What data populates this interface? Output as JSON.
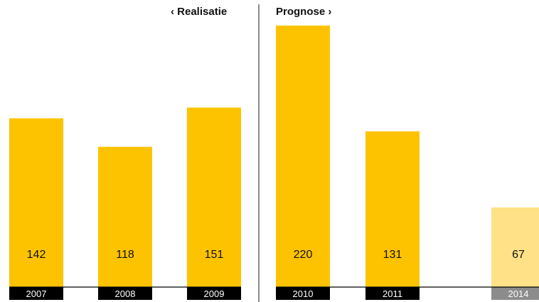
{
  "sections": {
    "left_label": "‹ Realisatie",
    "right_label": "Prognose ›"
  },
  "colors": {
    "actual": "#FDC300",
    "forecast_near": "#FDC300",
    "forecast_far": "#FFE187",
    "year_box_dark": "#000000",
    "year_box_far": "#8C8C8C",
    "divider": "#8C8C8C",
    "value_text": "#111111",
    "year_text": "#ffffff"
  },
  "chart_data": {
    "type": "bar",
    "categories": [
      "2007",
      "2008",
      "2009",
      "2010",
      "2011",
      "2014"
    ],
    "values": [
      142,
      118,
      151,
      220,
      131,
      67
    ],
    "groups": [
      "Realisatie",
      "Realisatie",
      "Realisatie",
      "Prognose",
      "Prognose",
      "Prognose"
    ],
    "ylim": [
      0,
      230
    ]
  }
}
